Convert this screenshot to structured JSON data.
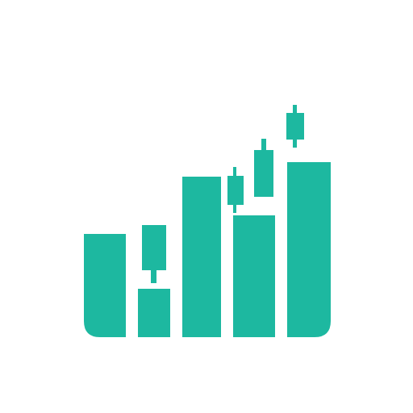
{
  "logo": {
    "icon": "bar-chart-candlestick-growth-icon",
    "accent_color": "#1db8a0",
    "background_color": "#ffffff"
  }
}
